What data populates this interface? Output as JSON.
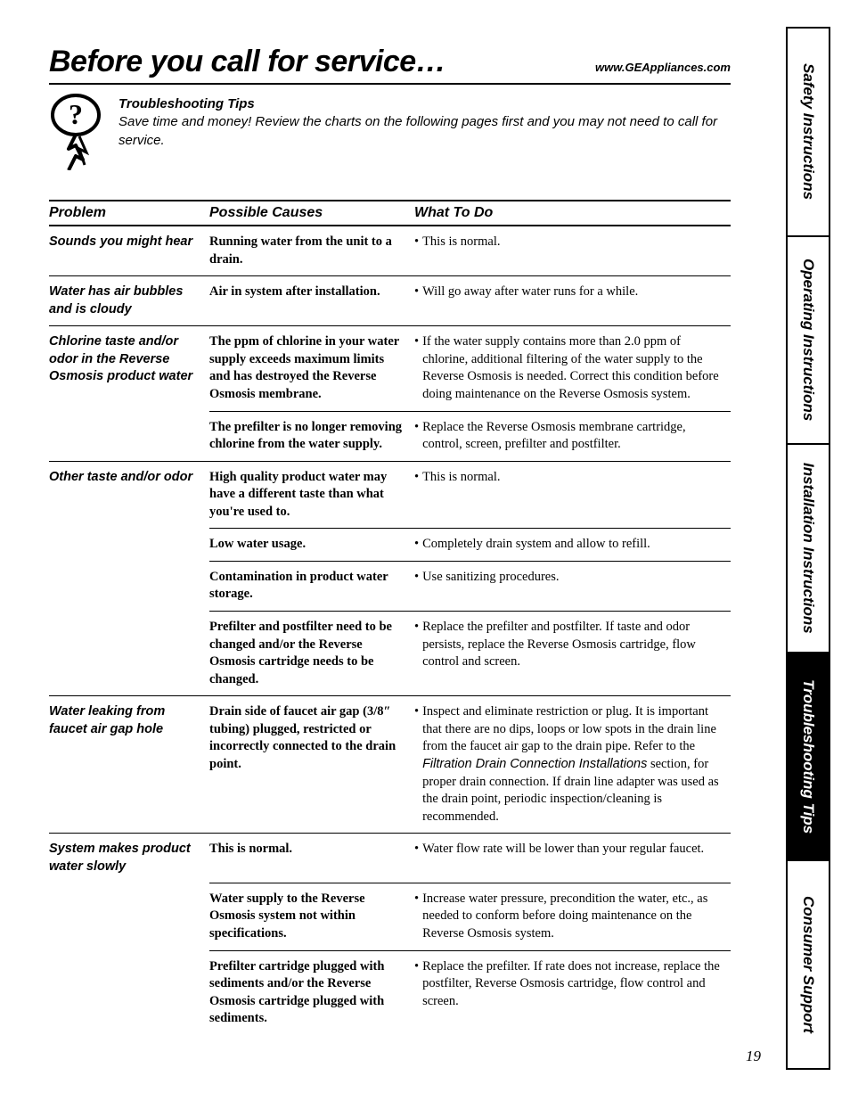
{
  "header": {
    "title": "Before you call for service…",
    "url": "www.GEAppliances.com"
  },
  "intro": {
    "line1": "Troubleshooting Tips",
    "line2": "Save time and money! Review the charts on the following pages first and you may not need to call for service."
  },
  "columns": {
    "problem": "Problem",
    "cause": "Possible Causes",
    "todo": "What To Do"
  },
  "rows": [
    {
      "problem": "Sounds you might hear",
      "cause": "Running water from the unit to a drain.",
      "todo": "This is normal.",
      "group_start": true
    },
    {
      "problem": "Water has air bubbles and is cloudy",
      "cause": "Air in system after installation.",
      "todo": "Will go away after water runs for a while.",
      "group_start": true
    },
    {
      "problem": "Chlorine taste and/or odor in the Reverse Osmosis product water",
      "cause": "The ppm of chlorine in your water supply exceeds maximum limits and has destroyed the Reverse Osmosis membrane.",
      "todo": "If the water supply contains more than 2.0 ppm of chlorine, additional filtering of the water supply to the Reverse Osmosis is needed. Correct this condition before doing maintenance on the Reverse Osmosis system.",
      "group_start": true
    },
    {
      "problem": "",
      "cause": "The prefilter is no longer removing chlorine from the water supply.",
      "todo": "Replace the Reverse Osmosis membrane cartridge, control, screen, prefilter and postfilter.",
      "group_start": false
    },
    {
      "problem": "Other taste and/or odor",
      "cause": "High quality product water may have a different taste than what you're used to.",
      "todo": "This is normal.",
      "group_start": true
    },
    {
      "problem": "",
      "cause": "Low water usage.",
      "todo": "Completely drain system and allow to refill.",
      "group_start": false
    },
    {
      "problem": "",
      "cause": "Contamination in product water storage.",
      "todo": "Use sanitizing procedures.",
      "group_start": false
    },
    {
      "problem": "",
      "cause": "Prefilter and postfilter need to be changed and/or the Reverse Osmosis cartridge needs to be changed.",
      "todo": "Replace the prefilter and postfilter. If taste and odor persists, replace the Reverse Osmosis cartridge, flow control and screen.",
      "group_start": false
    },
    {
      "problem": "Water leaking from faucet air gap hole",
      "cause": "Drain side of faucet air gap (3/8″ tubing) plugged, restricted or incorrectly connected to the drain point.",
      "todo_pre": "Inspect and eliminate restriction or plug. It is important that there are no dips, loops or low spots in the drain line from the faucet air gap to the drain pipe. Refer to the ",
      "todo_em": "Filtration Drain Connection Installations",
      "todo_post": " section, for proper drain connection. If drain line adapter was used as the drain point, periodic inspection/cleaning is recommended.",
      "group_start": true,
      "has_em": true
    },
    {
      "problem": "System makes product water slowly",
      "cause": "This is normal.",
      "todo": "Water flow rate will be lower than your regular faucet.",
      "group_start": true
    },
    {
      "problem": "",
      "cause": "Water supply to the Reverse Osmosis system not within specifications.",
      "todo": "Increase water pressure, precondition the water, etc., as needed to conform before doing maintenance on the Reverse Osmosis system.",
      "group_start": false
    },
    {
      "problem": "",
      "cause": "Prefilter cartridge plugged with sediments and/or the Reverse Osmosis cartridge plugged with sediments.",
      "todo": "Replace the prefilter. If rate does not increase, replace the postfilter, Reverse Osmosis cartridge, flow control and screen.",
      "group_start": false
    }
  ],
  "tabs": [
    {
      "label": "Safety Instructions",
      "active": false
    },
    {
      "label": "Operating Instructions",
      "active": false
    },
    {
      "label": "Installation Instructions",
      "active": false
    },
    {
      "label": "Troubleshooting Tips",
      "active": true
    },
    {
      "label": "Consumer Support",
      "active": false
    }
  ],
  "page_number": "19"
}
